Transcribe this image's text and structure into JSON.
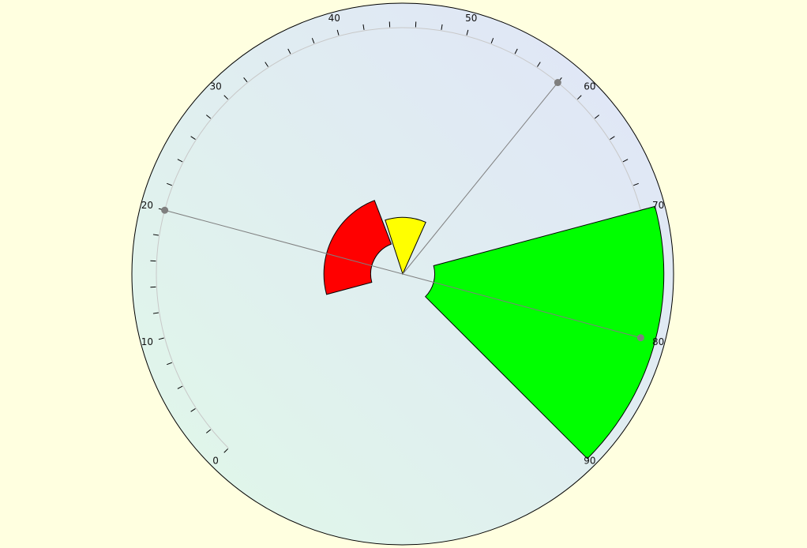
{
  "chart_data": {
    "type": "radial-gauge",
    "title": "",
    "scale": {
      "min": 0,
      "max": 90,
      "major_step": 10,
      "minor_step": 2
    },
    "tick_labels": [
      "0",
      "10",
      "20",
      "30",
      "40",
      "50",
      "60",
      "70",
      "80",
      "90"
    ],
    "ranges": [
      {
        "from": 10,
        "to": 38,
        "inner": 0.13,
        "outer": 0.32,
        "color": "#ff0000"
      },
      {
        "from": 39,
        "to": 53,
        "inner": 0.0,
        "outer": 0.23,
        "color": "#ffff00"
      },
      {
        "from": 70,
        "to": 90,
        "inner": 0.13,
        "outer": 1.06,
        "color": "#00ff00"
      }
    ],
    "needles": [
      {
        "value": 20,
        "color": "#7f7f7f"
      },
      {
        "value": 58,
        "color": "#7f7f7f"
      },
      {
        "value": 80,
        "color": "#7f7f7f"
      }
    ],
    "colors": {
      "page_background": "#ffffe0",
      "dial_gradient_start": "#e0f8e8",
      "dial_gradient_end": "#e0e4f8",
      "dial_border": "#000000",
      "ticks": "#000000",
      "scale_arc": "#c8c8c8",
      "needle": "#7f7f7f"
    }
  }
}
